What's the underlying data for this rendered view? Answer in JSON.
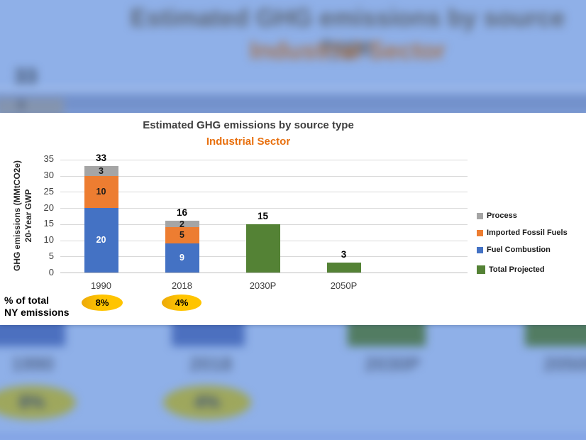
{
  "background": {
    "title": "Estimated GHG emissions by source type",
    "subtitle": "Industrial Sector",
    "bar_total_label": "33",
    "bar_segment_label": "3",
    "category_labels": [
      "1990",
      "2018",
      "2030P",
      "2050P"
    ],
    "percent_labels": [
      "8%",
      "4%"
    ]
  },
  "chart_data": {
    "type": "bar",
    "stacked": true,
    "title": "Estimated GHG emissions by source type",
    "subtitle": "Industrial Sector",
    "ylabel_line1": "GHG emissions (MMtCO2e)",
    "ylabel_line2": "20-Year GWP",
    "ylim": [
      0,
      35
    ],
    "ytick_step": 5,
    "grid": true,
    "legend_position": "right",
    "categories": [
      "1990",
      "2018",
      "2030P",
      "2050P"
    ],
    "series": [
      {
        "name": "Fuel Combustion",
        "color": "#4472C4",
        "label_color": "#FFFFFF",
        "values": [
          20,
          9,
          null,
          null
        ]
      },
      {
        "name": "Imported Fossil Fuels",
        "color": "#ED7D31",
        "label_color": "#1A1A1A",
        "values": [
          10,
          5,
          null,
          null
        ]
      },
      {
        "name": "Process",
        "color": "#A5A5A5",
        "label_color": "#1A1A1A",
        "values": [
          3,
          2,
          null,
          null
        ]
      },
      {
        "name": "Total Projected",
        "color": "#548235",
        "label_color": null,
        "values": [
          null,
          null,
          15,
          3
        ]
      }
    ],
    "totals": [
      33,
      16,
      15,
      3
    ],
    "legend": [
      {
        "label": "Process",
        "color": "#A5A5A5",
        "large_swatch": false,
        "gap_above": false
      },
      {
        "label": "Imported Fossil Fuels",
        "color": "#ED7D31",
        "large_swatch": false,
        "gap_above": false
      },
      {
        "label": "Fuel Combustion",
        "color": "#4472C4",
        "large_swatch": false,
        "gap_above": false
      },
      {
        "label": "Total Projected",
        "color": "#548235",
        "large_swatch": true,
        "gap_above": true
      }
    ],
    "footnote": {
      "line1": "% of total",
      "line2": "NY emissions"
    },
    "percent_badges": [
      {
        "category": "1990",
        "value": "8%",
        "color": "#FFC000"
      },
      {
        "category": "2018",
        "value": "4%",
        "color": "#FFC000"
      }
    ]
  },
  "colors": {
    "accent_orange": "#E8700F",
    "badge_yellow": "#FFC000",
    "background_blue": "#8FB0E8",
    "gridline": "#D9D9D9",
    "axis_line": "#BFBFBF"
  }
}
